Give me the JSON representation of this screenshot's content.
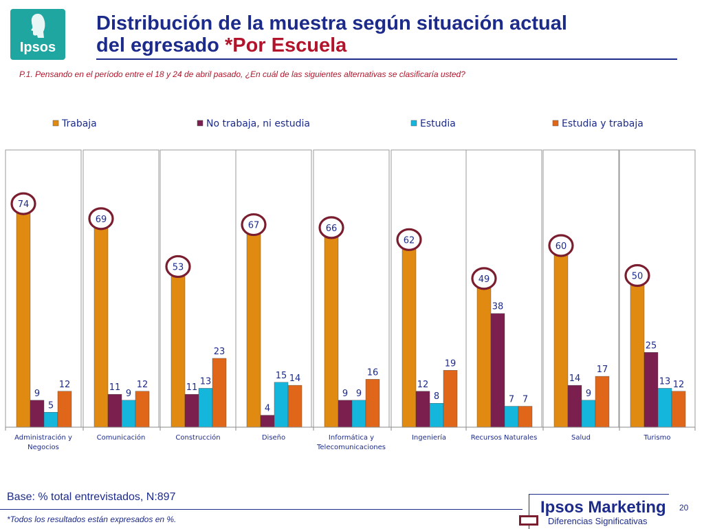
{
  "logo": {
    "text": "Ipsos",
    "color": "#20a6a0"
  },
  "title": {
    "line1": "Distribución de la muestra según situación actual",
    "line2_main": "del egresado ",
    "line2_highlight": "*Por Escuela"
  },
  "question": "P.1.  Pensando en el período entre el 18 y 24 de abril pasado, ¿En cuál de las siguientes alternativas se clasificaría usted?",
  "base_text": "Base: % total entrevistados, N:897",
  "footnote": "*Todos los resultados están expresados en %.",
  "brand": "Ipsos Marketing",
  "page_number": "20",
  "legend_significance": "Diferencias Significativas",
  "chart_data": {
    "type": "bar",
    "categories": [
      "Administración y Negocios",
      "Comunicación",
      "Construcción",
      "Diseño",
      "Informática y Telecomunicaciones",
      "Ingeniería",
      "Recursos Naturales",
      "Salud",
      "Turismo"
    ],
    "category_lines": [
      [
        "Administración y",
        "Negocios"
      ],
      [
        "Comunicación"
      ],
      [
        "Construcción"
      ],
      [
        "Diseño"
      ],
      [
        "Informática y",
        "Telecomunicaciones"
      ],
      [
        "Ingeniería"
      ],
      [
        "Recursos Naturales"
      ],
      [
        "Salud"
      ],
      [
        "Turismo"
      ]
    ],
    "series": [
      {
        "name": "Trabaja",
        "color": "#e08a12",
        "values": [
          74,
          69,
          53,
          67,
          66,
          62,
          49,
          60,
          50
        ]
      },
      {
        "name": "No trabaja, ni estudia",
        "color": "#7a1f4e",
        "values": [
          9,
          11,
          11,
          4,
          9,
          12,
          38,
          14,
          25
        ]
      },
      {
        "name": "Estudia",
        "color": "#15b6dc",
        "values": [
          5,
          9,
          13,
          15,
          9,
          8,
          7,
          9,
          13
        ]
      },
      {
        "name": "Estudia y trabaja",
        "color": "#e0661a",
        "values": [
          12,
          12,
          23,
          14,
          16,
          19,
          7,
          17,
          12
        ]
      }
    ],
    "significant_series": "Trabaja",
    "ylim": [
      0,
      80
    ],
    "legend_position": "top",
    "grid": false,
    "xlabel": "",
    "ylabel": ""
  }
}
